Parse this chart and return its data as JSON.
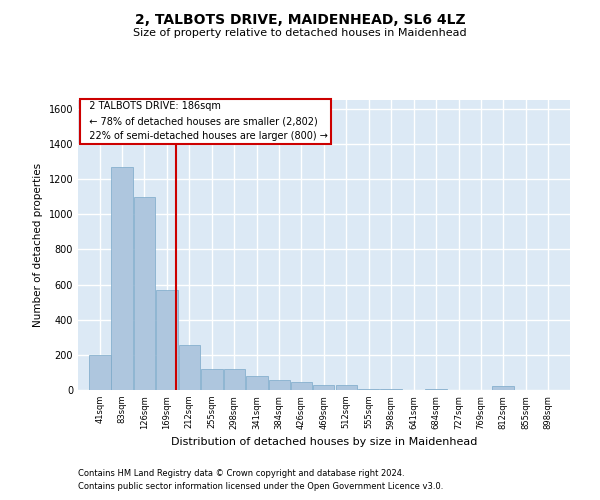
{
  "title1": "2, TALBOTS DRIVE, MAIDENHEAD, SL6 4LZ",
  "title2": "Size of property relative to detached houses in Maidenhead",
  "xlabel": "Distribution of detached houses by size in Maidenhead",
  "ylabel": "Number of detached properties",
  "footer1": "Contains HM Land Registry data © Crown copyright and database right 2024.",
  "footer2": "Contains public sector information licensed under the Open Government Licence v3.0.",
  "annotation_line1": "2 TALBOTS DRIVE: 186sqm",
  "annotation_line2": "← 78% of detached houses are smaller (2,802)",
  "annotation_line3": "22% of semi-detached houses are larger (800) →",
  "property_size": 186,
  "bar_color": "#aec6de",
  "bar_edge_color": "#7aa8c8",
  "vline_color": "#cc0000",
  "bg_color": "#dce9f5",
  "grid_color": "#ffffff",
  "bins": [
    41,
    83,
    126,
    169,
    212,
    255,
    298,
    341,
    384,
    426,
    469,
    512,
    555,
    598,
    641,
    684,
    727,
    769,
    812,
    855,
    898
  ],
  "values": [
    200,
    1270,
    1100,
    570,
    255,
    120,
    120,
    80,
    55,
    45,
    30,
    30,
    5,
    5,
    0,
    5,
    0,
    0,
    20,
    0,
    0
  ],
  "ylim": [
    0,
    1650
  ],
  "yticks": [
    0,
    200,
    400,
    600,
    800,
    1000,
    1200,
    1400,
    1600
  ]
}
